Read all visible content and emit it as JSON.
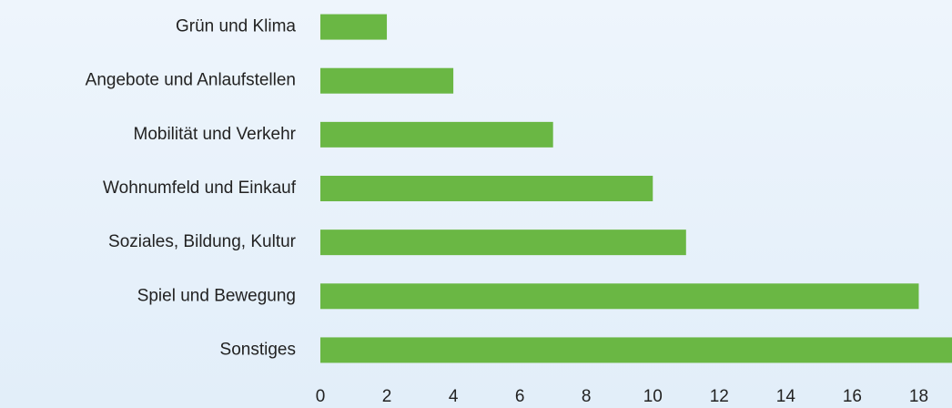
{
  "chart_data": {
    "type": "hbar",
    "categories": [
      "Grün und Klima",
      "Angebote und Anlaufstellen",
      "Mobilität und Verkehr",
      "Wohnumfeld und Einkauf",
      "Soziales, Bildung, Kultur",
      "Spiel und Bewegung",
      "Sonstiges"
    ],
    "values": [
      2,
      4,
      7,
      10,
      11,
      18,
      19
    ],
    "color": "#6ab744",
    "xlim": [
      0,
      19
    ],
    "xticks": [
      0,
      2,
      4,
      6,
      8,
      10,
      12,
      14,
      16,
      18
    ],
    "grid": false
  }
}
